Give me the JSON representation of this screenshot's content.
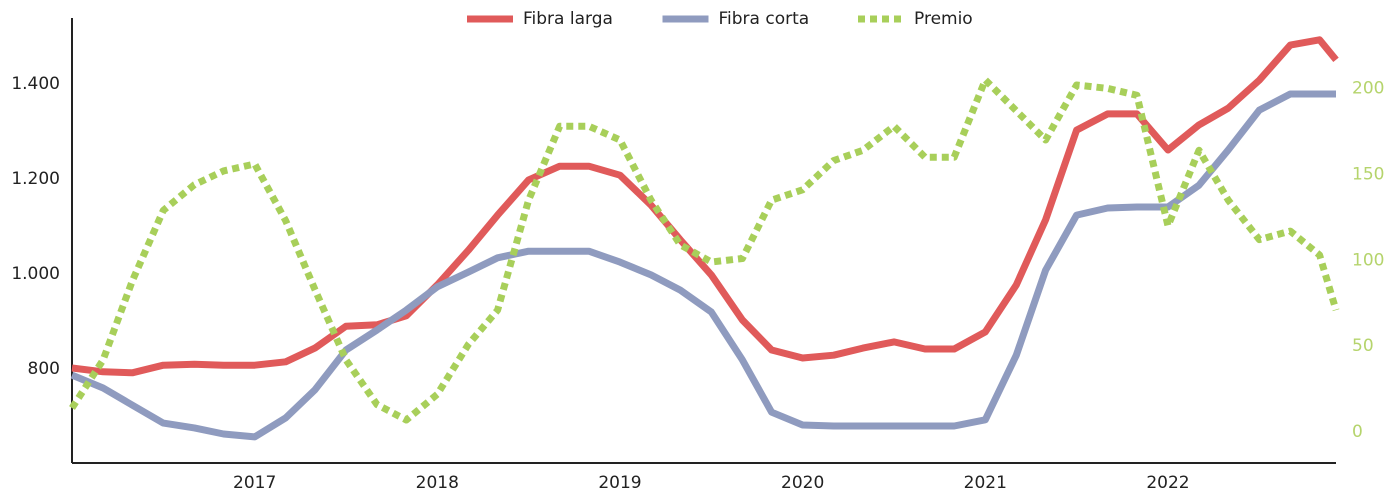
{
  "chart_data": {
    "type": "line",
    "x": [
      2016,
      2016.17,
      2016.33,
      2016.5,
      2016.67,
      2016.83,
      2017,
      2017.17,
      2017.33,
      2017.5,
      2017.67,
      2017.83,
      2018,
      2018.17,
      2018.33,
      2018.5,
      2018.67,
      2018.83,
      2019,
      2019.17,
      2019.33,
      2019.5,
      2019.67,
      2019.83,
      2020,
      2020.17,
      2020.33,
      2020.5,
      2020.67,
      2020.83,
      2021,
      2021.17,
      2021.33,
      2021.5,
      2021.67,
      2021.83,
      2022,
      2022.17,
      2022.33,
      2022.5,
      2022.67,
      2022.83,
      2022.92
    ],
    "series": [
      {
        "name": "Fibra larga",
        "color": "#e05a5a",
        "style": "solid",
        "axis": "y",
        "values": [
          802,
          794,
          792,
          808,
          810,
          808,
          808,
          815,
          844,
          890,
          893,
          912,
          977,
          1050,
          1124,
          1198,
          1227,
          1227,
          1208,
          1145,
          1072,
          998,
          903,
          840,
          823,
          829,
          844,
          857,
          842,
          842,
          878,
          977,
          1114,
          1303,
          1337,
          1337,
          1261,
          1314,
          1349,
          1408,
          1482,
          1493,
          1451
        ]
      },
      {
        "name": "Fibra corta",
        "color": "#8f9bbf",
        "style": "solid",
        "axis": "y",
        "values": [
          787,
          760,
          724,
          686,
          676,
          663,
          657,
          697,
          756,
          840,
          882,
          924,
          973,
          1004,
          1034,
          1048,
          1048,
          1048,
          1025,
          998,
          966,
          920,
          819,
          709,
          682,
          680,
          680,
          680,
          680,
          680,
          693,
          829,
          1008,
          1124,
          1139,
          1141,
          1141,
          1187,
          1261,
          1345,
          1379,
          1379,
          1379
        ]
      },
      {
        "name": "Premio",
        "color": "#a8cf5a",
        "style": "dotted",
        "axis": "y2",
        "values": [
          14,
          42,
          88,
          129,
          144,
          152,
          156,
          123,
          83,
          42,
          16,
          7,
          22,
          51,
          71,
          135,
          178,
          178,
          170,
          135,
          109,
          99,
          101,
          135,
          141,
          158,
          164,
          178,
          160,
          160,
          205,
          187,
          170,
          202,
          200,
          196,
          120,
          164,
          135,
          112,
          117,
          103,
          71
        ]
      }
    ],
    "xlim": [
      2016,
      2022.92
    ],
    "xticks": [
      2017,
      2018,
      2019,
      2020,
      2021,
      2022
    ],
    "ylim": [
      602,
      1539
    ],
    "yticks": [
      {
        "value": 800,
        "label": "800"
      },
      {
        "value": 1000,
        "label": "1.000"
      },
      {
        "value": 1200,
        "label": "1.200"
      },
      {
        "value": 1400,
        "label": "1.400"
      }
    ],
    "y2lim": [
      -18,
      241
    ],
    "y2ticks": [
      0,
      50,
      100,
      150,
      200
    ],
    "legend": "top"
  }
}
